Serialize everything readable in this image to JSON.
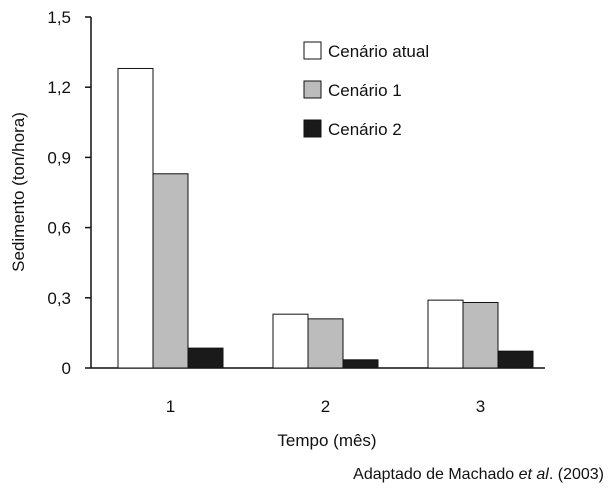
{
  "chart_data": {
    "type": "bar",
    "categories": [
      "1",
      "2",
      "3"
    ],
    "series": [
      {
        "name": "Cenário atual",
        "values": [
          1.28,
          0.23,
          0.29
        ],
        "fill": "#ffffff"
      },
      {
        "name": "Cenário 1",
        "values": [
          0.83,
          0.21,
          0.28
        ],
        "fill": "#bcbcbc"
      },
      {
        "name": "Cenário 2",
        "values": [
          0.085,
          0.035,
          0.072
        ],
        "fill": "#1a1a1a"
      }
    ],
    "xlabel": "Tempo (mês)",
    "ylabel": "Sedimento (ton/hora)",
    "ylim": [
      0,
      1.5
    ],
    "yticks": [
      {
        "value": 0,
        "label": "0"
      },
      {
        "value": 0.3,
        "label": "0,3"
      },
      {
        "value": 0.6,
        "label": "0,6"
      },
      {
        "value": 0.9,
        "label": "0,9"
      },
      {
        "value": 1.2,
        "label": "1,2"
      },
      {
        "value": 1.5,
        "label": "1,5"
      }
    ],
    "grid": false,
    "legend_position": "top-right"
  },
  "source": {
    "prefix": "Adaptado de Machado ",
    "italic": "et al",
    "suffix": ". (2003)"
  }
}
